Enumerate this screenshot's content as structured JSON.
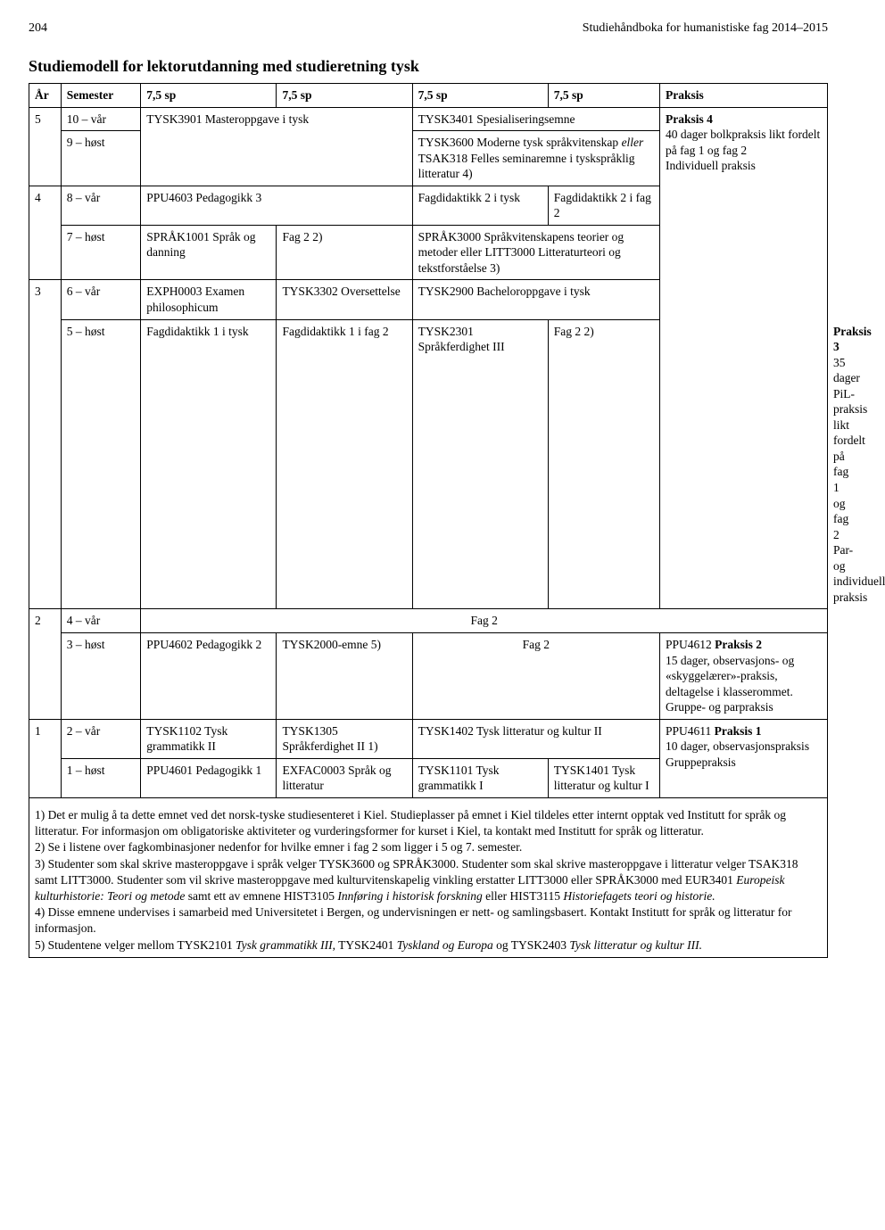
{
  "header": {
    "page_number": "204",
    "running_title": "Studiehåndboka for humanistiske fag 2014–2015"
  },
  "section_title": "Studiemodell for lektorutdanning med studieretning tysk",
  "columns": {
    "ar": "År",
    "semester": "Semester",
    "sp": "7,5 sp",
    "praksis": "Praksis"
  },
  "cells": {
    "r5_ar": "5",
    "r5_sem10": "10 – vår",
    "r5_sem9": "9 – høst",
    "r5_a": "TYSK3901 Masteroppgave i tysk",
    "r5_10_cd": "TYSK3401 Spesialiseringsemne",
    "r5_9_cd_1": "TYSK3600 Moderne tysk språkvitenskap ",
    "r5_9_cd_2": "eller",
    "r5_9_cd_3": " TSAK318 Felles seminaremne i tyskspråklig litteratur 4)",
    "r4_ar": "4",
    "r4_sem8": "8 – vår",
    "r4_sem7": "7 – høst",
    "r4_8_a": "PPU4603 Pedagogikk 3",
    "r4_8_c": "Fagdidaktikk 2 i tysk",
    "r4_8_d": "Fagdidaktikk 2 i fag 2",
    "r4_7_a": "SPRÅK1001 Språk og danning",
    "r4_7_b": "Fag 2 2)",
    "r4_7_cd_1": "SPRÅK3000 Språkvitenskapens teorier og metoder eller LITT3000 Litteraturteori og tekstforståelse 3)",
    "r4_praksis_title": "Praksis 4",
    "r4_praksis_body": "40 dager bolkpraksis likt fordelt på fag 1 og fag 2\nIndividuell praksis",
    "r3_ar": "3",
    "r3_sem6": "6 – vår",
    "r3_sem5": "5 – høst",
    "r3_6_a": "EXPH0003 Examen philosophicum",
    "r3_6_b": "TYSK3302 Oversettelse",
    "r3_6_cd": "TYSK2900 Bacheloroppgave i tysk",
    "r3_5_a": "Fagdidaktikk 1 i tysk",
    "r3_5_b": "Fagdidaktikk 1 i fag 2",
    "r3_5_c": "TYSK2301 Språkferdighet III",
    "r3_5_d": "Fag 2 2)",
    "r3_praksis_title": "Praksis 3",
    "r3_praksis_body": "35 dager PiL-praksis likt fordelt på fag 1 og fag 2\nPar- og individuell praksis",
    "r2_ar": "2",
    "r2_sem4": "4 – vår",
    "r2_sem3": "3 – høst",
    "r2_4_all": "Fag 2",
    "r2_3_a": "PPU4602 Pedagogikk 2",
    "r2_3_b": "TYSK2000-emne 5)",
    "r2_3_cd": "Fag 2",
    "r2_praksis_title": "PPU4612 Praksis 2",
    "r2_praksis_body": "15 dager, observasjons- og «skyggelærer»-praksis, deltagelse i klasserommet.\nGruppe- og parpraksis",
    "r1_ar": "1",
    "r1_sem2": "2 – vår",
    "r1_sem1": "1 – høst",
    "r1_2_a": "TYSK1102 Tysk grammatikk II",
    "r1_2_b": "TYSK1305 Språkferdighet II 1)",
    "r1_2_cd": "TYSK1402 Tysk litteratur og kultur II",
    "r1_1_a": "PPU4601 Pedagogikk 1",
    "r1_1_b": "EXFAC0003 Språk og litteratur",
    "r1_1_c": "TYSK1101 Tysk grammatikk I",
    "r1_1_d": "TYSK1401 Tysk litteratur og kultur I",
    "r1_praksis_title": "PPU4611 Praksis 1",
    "r1_praksis_body": "10 dager, observasjonspraksis\nGruppepraksis"
  },
  "notes": {
    "n1": "1) Det er mulig å ta dette emnet ved det norsk-tyske studiesenteret i Kiel. Studieplasser på emnet i Kiel tildeles etter internt opptak ved Institutt for språk og litteratur. For informasjon om obligatoriske aktiviteter og vurderingsformer for kurset i Kiel, ta kontakt med Institutt for språk og litteratur.",
    "n2": "2) Se i listene over fagkombinasjoner nedenfor for hvilke emner i fag 2 som ligger i 5 og 7. semester.",
    "n3a": "3) Studenter som skal skrive masteroppgave i språk velger TYSK3600 og SPRÅK3000. Studenter som skal skrive masteroppgave i litteratur velger TSAK318 samt LITT3000. Studenter som vil skrive masteroppgave med kulturvitenskapelig vinkling erstatter LITT3000 eller SPRÅK3000 med EUR3401 ",
    "n3b": "Europeisk kulturhistorie: Teori og metode",
    "n3c": " samt ett av emnene HIST3105 ",
    "n3d": "Innføring i historisk forskning",
    "n3e": " eller HIST3115 ",
    "n3f": "Historiefagets teori og historie.",
    "n4": "4) Disse emnene undervises i samarbeid med Universitetet i Bergen, og undervisningen er nett- og samlingsbasert. Kontakt Institutt for språk og litteratur for informasjon.",
    "n5a": "5) Studentene velger mellom TYSK2101 ",
    "n5b": "Tysk grammatikk III",
    "n5c": ", TYSK2401 ",
    "n5d": "Tyskland og Europa",
    "n5e": " og TYSK2403 ",
    "n5f": "Tysk litteratur og kultur III."
  }
}
